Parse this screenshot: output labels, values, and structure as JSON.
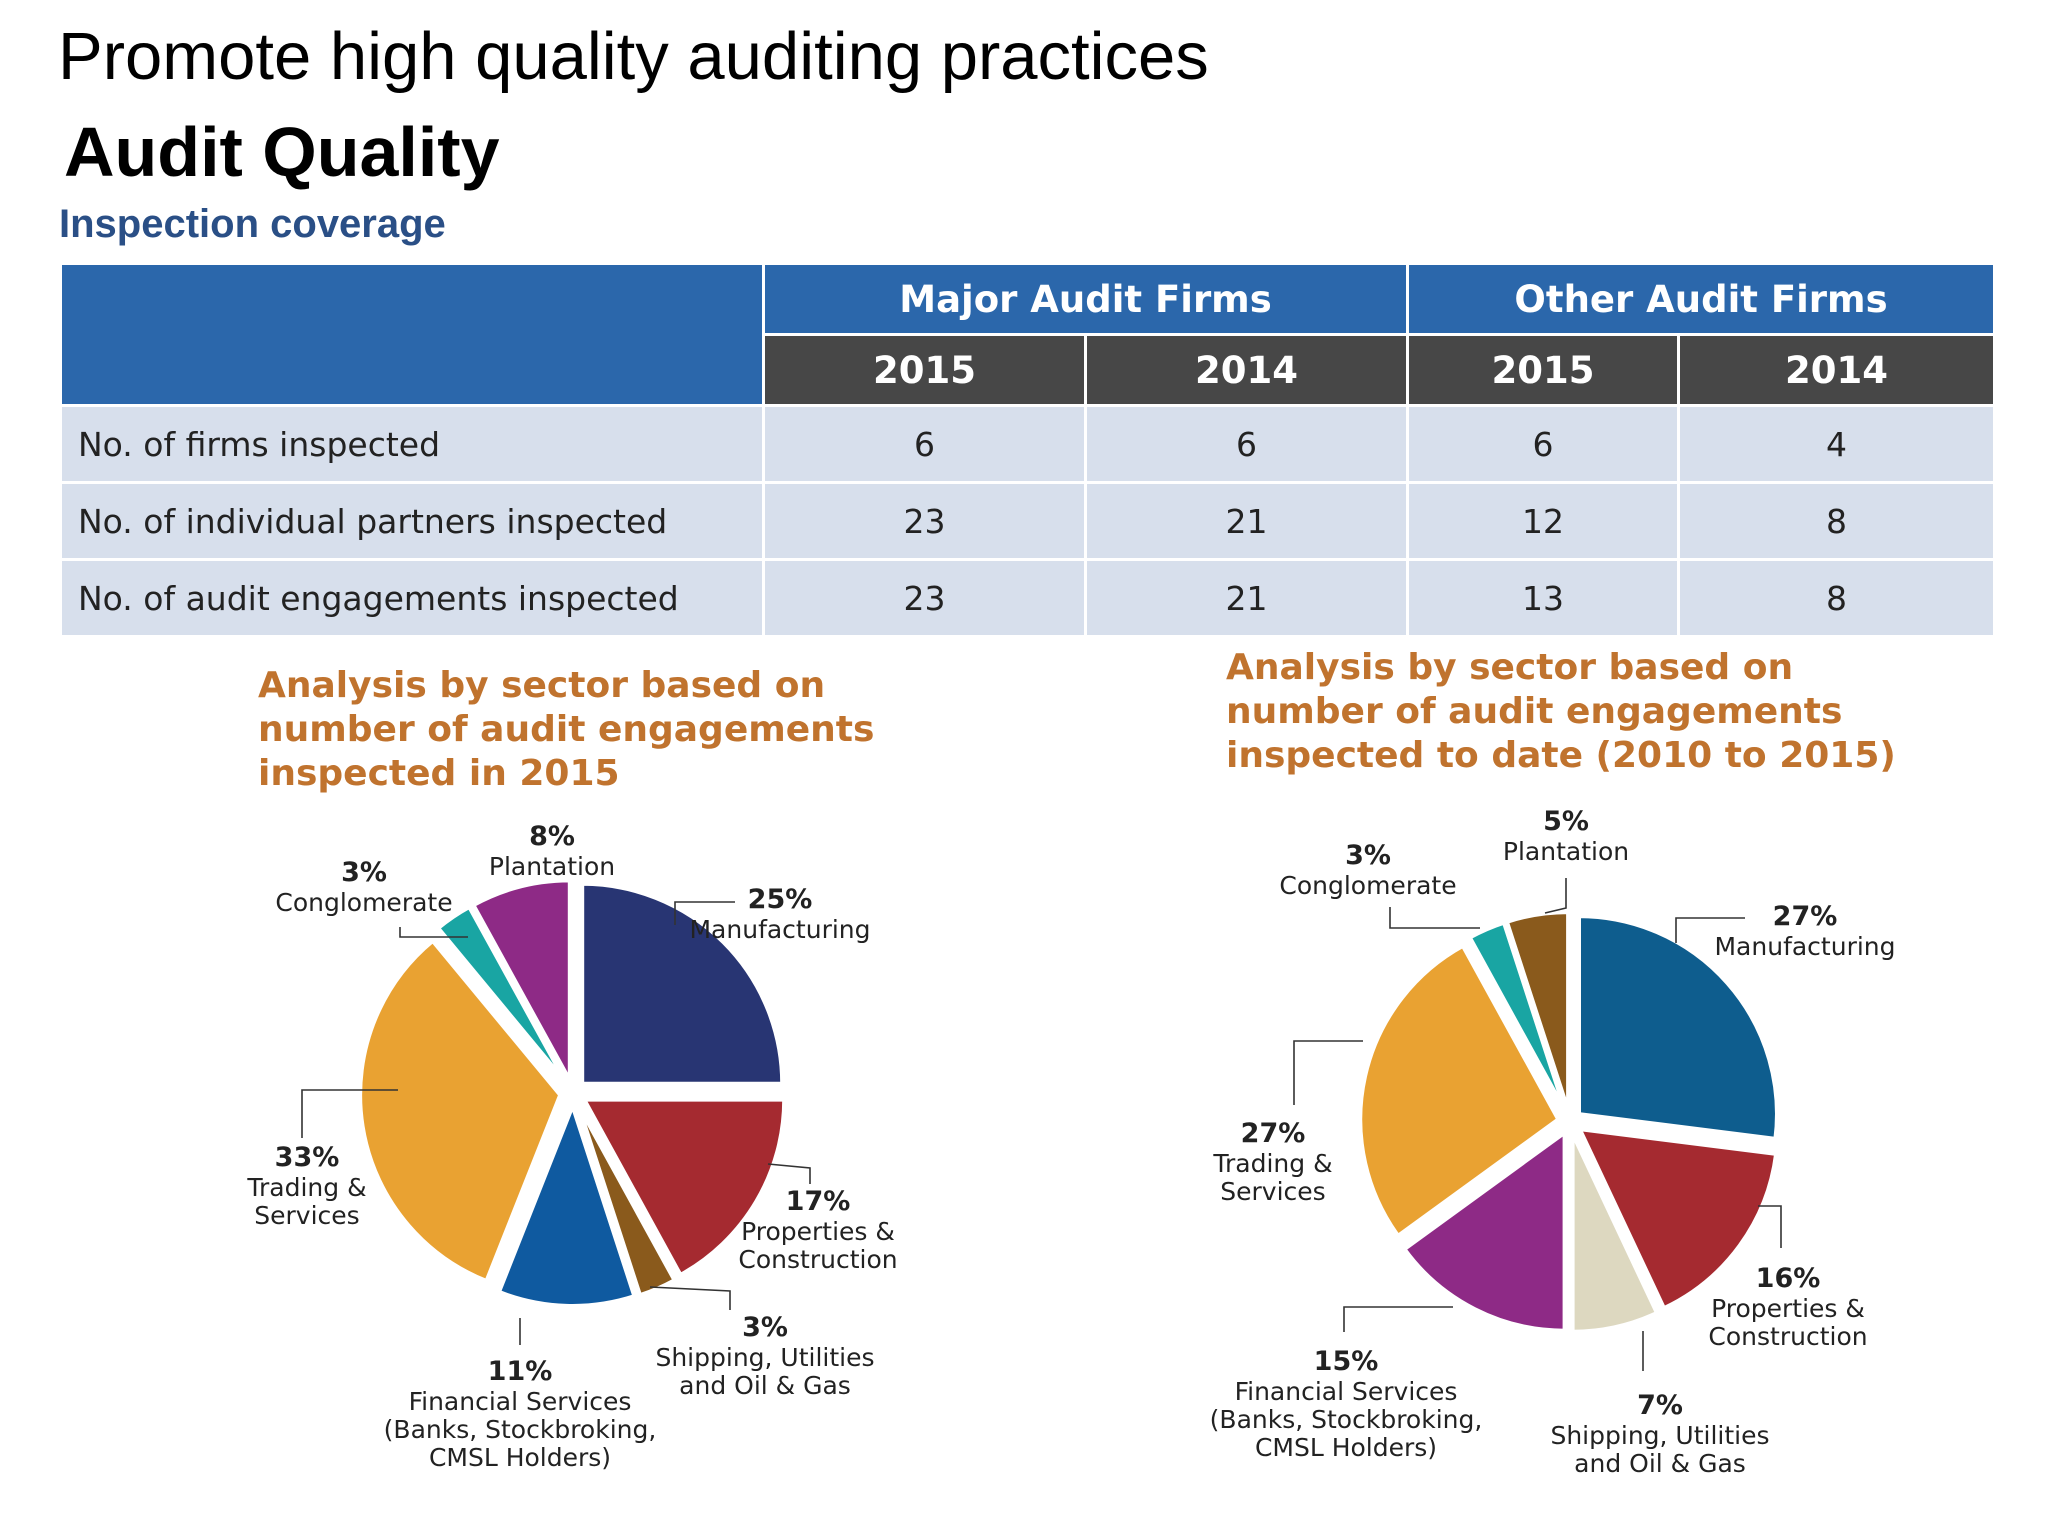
{
  "main_title": "Promote high quality auditing practices",
  "sub_title": "Audit Quality",
  "section_title": "Inspection coverage",
  "table": {
    "group_headers": [
      "Major Audit Firms",
      "Other Audit Firms"
    ],
    "year_headers": [
      "2015",
      "2014",
      "2015",
      "2014"
    ],
    "rows": [
      {
        "label": "No. of firms inspected",
        "values": [
          "6",
          "6",
          "6",
          "4"
        ]
      },
      {
        "label": "No. of individual partners inspected",
        "values": [
          "23",
          "21",
          "12",
          "8"
        ]
      },
      {
        "label": "No. of audit engagements inspected",
        "values": [
          "23",
          "21",
          "13",
          "8"
        ]
      }
    ]
  },
  "chart_data": [
    {
      "type": "pie",
      "title": "Analysis by sector based on number of audit engagements inspected in 2015",
      "slices": [
        {
          "label": "Manufacturing",
          "percent": "25%",
          "value": 25,
          "color": "#283573"
        },
        {
          "label": "Properties & Construction",
          "percent": "17%",
          "value": 17,
          "color": "#a52a30"
        },
        {
          "label": "Shipping, Utilities and Oil & Gas",
          "percent": "3%",
          "value": 3,
          "color": "#8a5a1c"
        },
        {
          "label": "Financial Services (Banks, Stockbroking, CMSL Holders)",
          "percent": "11%",
          "value": 11,
          "color": "#0f5aa0"
        },
        {
          "label": "Trading & Services",
          "percent": "33%",
          "value": 33,
          "color": "#e9a232"
        },
        {
          "label": "Conglomerate",
          "percent": "3%",
          "value": 3,
          "color": "#19a5a3"
        },
        {
          "label": "Plantation",
          "percent": "8%",
          "value": 8,
          "color": "#8e2a86"
        }
      ]
    },
    {
      "type": "pie",
      "title": "Analysis by sector based on number of audit engagements inspected to date (2010 to 2015)",
      "slices": [
        {
          "label": "Manufacturing",
          "percent": "27%",
          "value": 27,
          "color": "#0e5d8e"
        },
        {
          "label": "Properties & Construction",
          "percent": "16%",
          "value": 16,
          "color": "#a52a30"
        },
        {
          "label": "Shipping, Utilities and Oil & Gas",
          "percent": "7%",
          "value": 7,
          "color": "#ddd8c0"
        },
        {
          "label": "Financial Services (Banks, Stockbroking, CMSL Holders)",
          "percent": "15%",
          "value": 15,
          "color": "#8e2a86"
        },
        {
          "label": "Trading & Services",
          "percent": "27%",
          "value": 27,
          "color": "#e9a232"
        },
        {
          "label": "Conglomerate",
          "percent": "3%",
          "value": 3,
          "color": "#19a5a3"
        },
        {
          "label": "Plantation",
          "percent": "5%",
          "value": 5,
          "color": "#8a5a1c"
        }
      ]
    }
  ],
  "pie_label_lines": [
    [
      {
        "pct": "25%",
        "lines": [
          "Manufacturing"
        ]
      },
      {
        "pct": "17%",
        "lines": [
          "Properties &",
          "Construction"
        ]
      },
      {
        "pct": "3%",
        "lines": [
          "Shipping, Utilities",
          "and Oil & Gas"
        ]
      },
      {
        "pct": "11%",
        "lines": [
          "Financial Services",
          "(Banks, Stockbroking,",
          "CMSL Holders)"
        ]
      },
      {
        "pct": "33%",
        "lines": [
          "Trading &",
          "Services"
        ]
      },
      {
        "pct": "3%",
        "lines": [
          "Conglomerate"
        ]
      },
      {
        "pct": "8%",
        "lines": [
          "Plantation"
        ]
      }
    ],
    [
      {
        "pct": "27%",
        "lines": [
          "Manufacturing"
        ]
      },
      {
        "pct": "16%",
        "lines": [
          "Properties &",
          "Construction"
        ]
      },
      {
        "pct": "7%",
        "lines": [
          "Shipping, Utilities",
          "and Oil & Gas"
        ]
      },
      {
        "pct": "15%",
        "lines": [
          "Financial Services",
          "(Banks, Stockbroking,",
          "CMSL Holders)"
        ]
      },
      {
        "pct": "27%",
        "lines": [
          "Trading &",
          "Services"
        ]
      },
      {
        "pct": "3%",
        "lines": [
          "Conglomerate"
        ]
      },
      {
        "pct": "5%",
        "lines": [
          "Plantation"
        ]
      }
    ]
  ]
}
